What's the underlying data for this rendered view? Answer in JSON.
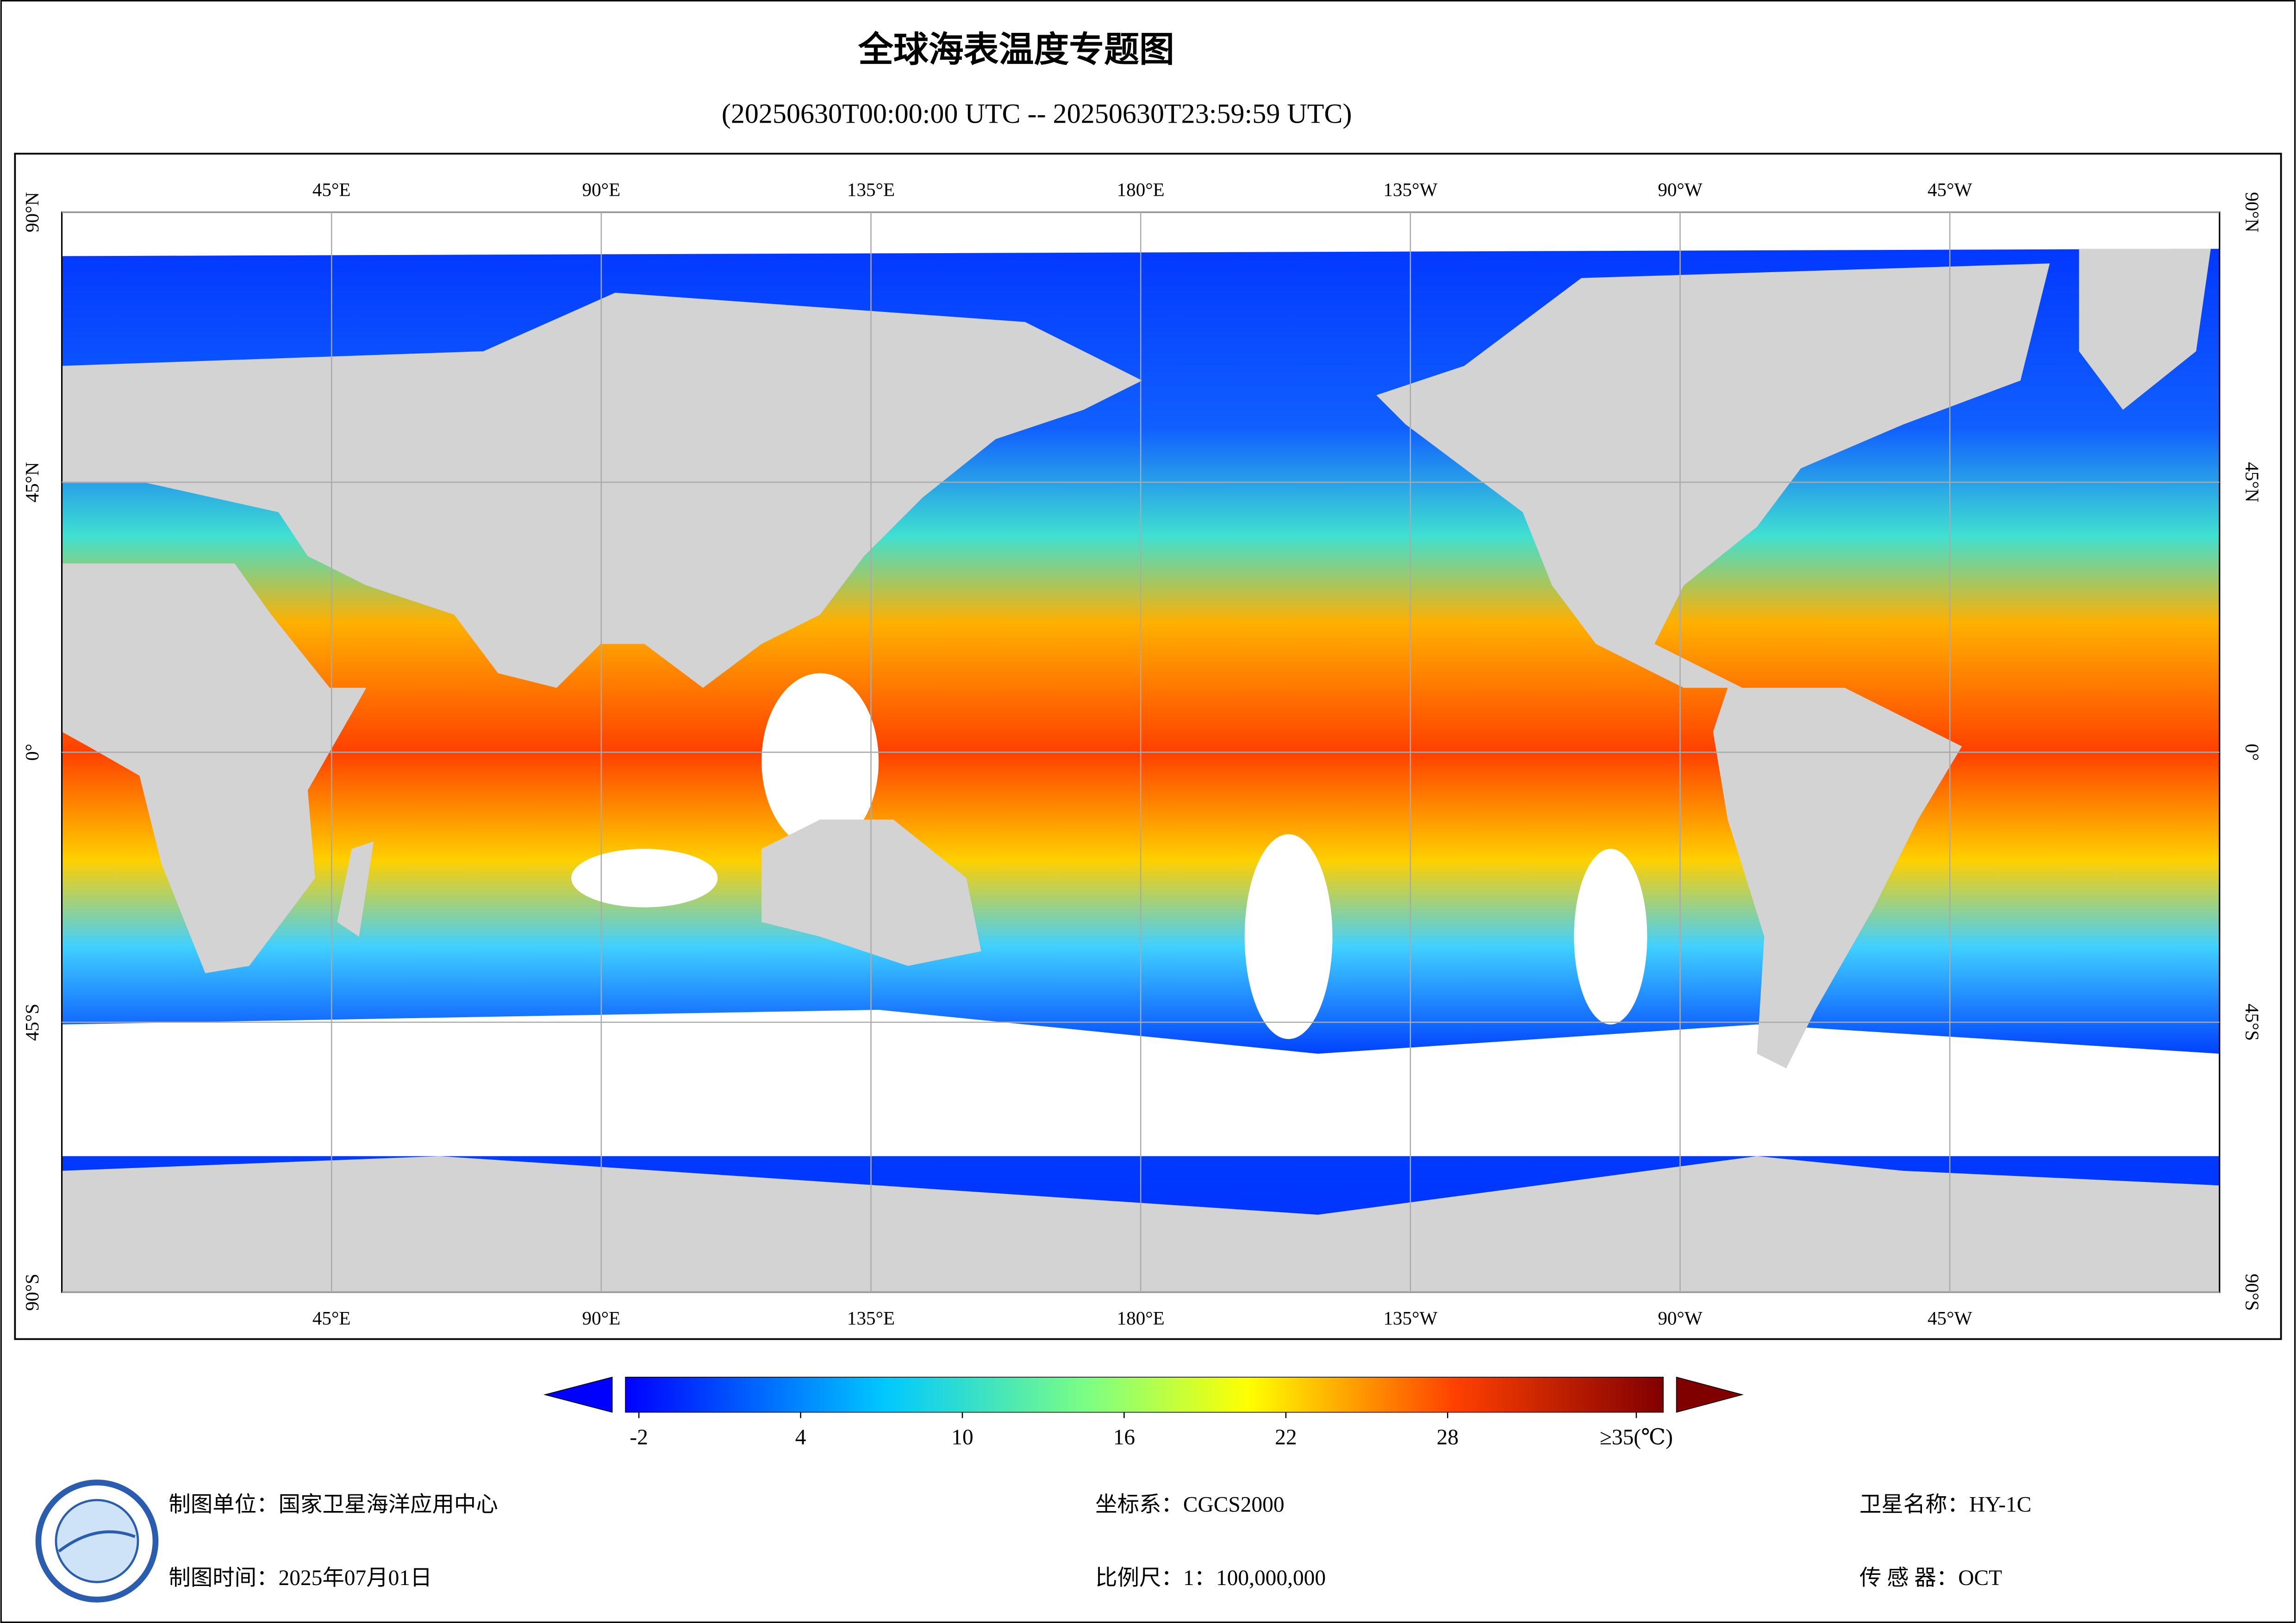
{
  "title": "全球海表温度专题图",
  "subtitle": "(20250630T00:00:00 UTC -- 20250630T23:59:59 UTC)",
  "map": {
    "lonlim": [
      0,
      360
    ],
    "latlim": [
      -90,
      90
    ],
    "lon_ticks": [
      {
        "value": 45,
        "label": "45°E"
      },
      {
        "value": 90,
        "label": "90°E"
      },
      {
        "value": 135,
        "label": "135°E"
      },
      {
        "value": 180,
        "label": "180°E"
      },
      {
        "value": 225,
        "label": "135°W"
      },
      {
        "value": 270,
        "label": "90°W"
      },
      {
        "value": 315,
        "label": "45°W"
      }
    ],
    "lat_ticks": [
      {
        "value": 90,
        "label": "90°N"
      },
      {
        "value": 45,
        "label": "45°N"
      },
      {
        "value": 0,
        "label": "0°"
      },
      {
        "value": -45,
        "label": "45°S"
      },
      {
        "value": -90,
        "label": "90°S"
      }
    ],
    "grid": true
  },
  "colorbar": {
    "lim": [
      -2.5,
      36
    ],
    "ticks": [
      -2,
      4,
      10,
      16,
      22,
      28,
      {
        "value": 35,
        "label": "≥35(℃)"
      }
    ]
  },
  "footer": {
    "unit": "制图单位：国家卫星海洋应用中心",
    "date": "制图时间：2025年07月01日",
    "crs": "坐标系：CGCS2000",
    "scale": "比例尺：1：100,000,000",
    "satellite": "卫星名称：HY-1C",
    "sensor": "传 感 器：OCT"
  }
}
